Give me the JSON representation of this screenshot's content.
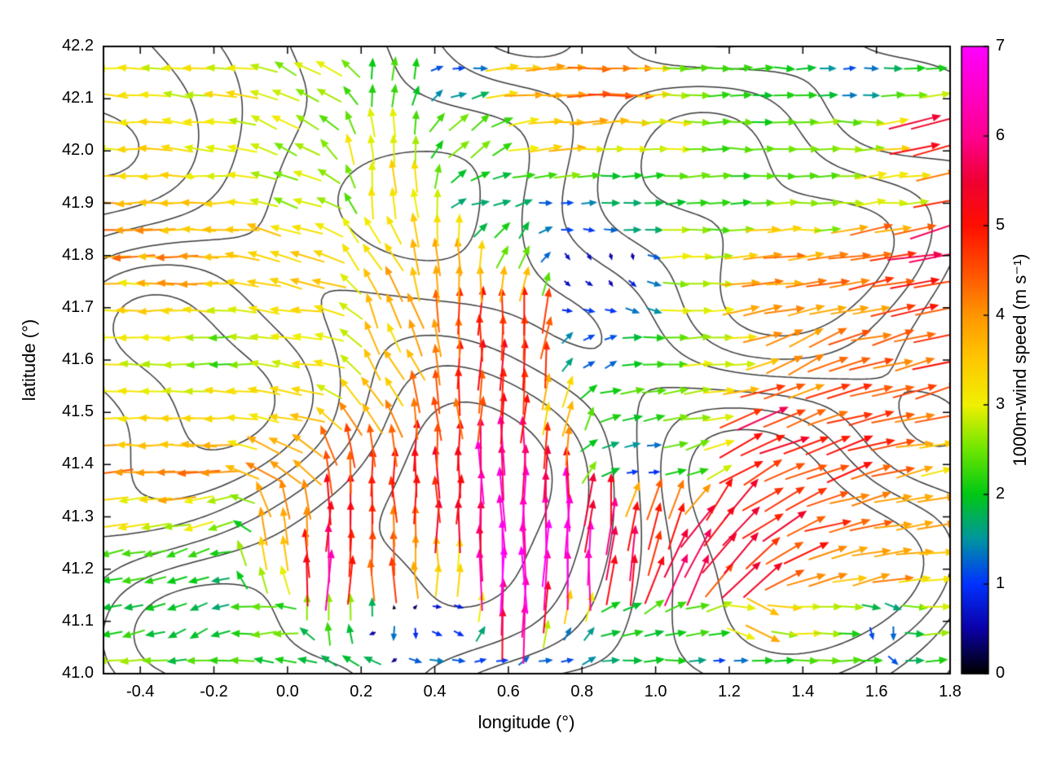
{
  "axes": {
    "xlabel": "longitude (°)",
    "ylabel": "latitude (°)",
    "xticks": [
      -0.4,
      -0.2,
      0,
      0.2,
      0.4,
      0.6,
      0.8,
      1.0,
      1.2,
      1.4,
      1.6,
      1.8
    ],
    "xtick_labels": [
      "-0.4",
      "-0.2",
      "0.0",
      "0.2",
      "0.4",
      "0.6",
      "0.8",
      "1.0",
      "1.2",
      "1.4",
      "1.6",
      "1.8"
    ],
    "yticks": [
      41.0,
      41.1,
      41.2,
      41.3,
      41.4,
      41.5,
      41.6,
      41.7,
      41.8,
      41.9,
      42.0,
      42.1,
      42.2
    ],
    "ytick_labels": [
      "41.0",
      "41.1",
      "41.2",
      "41.3",
      "41.4",
      "41.5",
      "41.6",
      "41.7",
      "41.8",
      "41.9",
      "42.0",
      "42.1",
      "42.2"
    ]
  },
  "colorbar": {
    "label": "1000m-wind speed (m s⁻¹)",
    "min": 0,
    "max": 7,
    "ticks": [
      0,
      1,
      2,
      3,
      4,
      5,
      6,
      7
    ],
    "tick_labels": [
      "0",
      "1",
      "2",
      "3",
      "4",
      "5",
      "6",
      "7"
    ]
  },
  "chart_data": {
    "type": "quiver",
    "title": "",
    "xlabel": "longitude (°)",
    "ylabel": "latitude (°)",
    "xlim": [
      -0.5,
      1.8
    ],
    "ylim": [
      41.0,
      42.2
    ],
    "grid": false,
    "colorbar_label": "1000m-wind speed (m s⁻¹)",
    "speed_range": [
      0,
      7
    ],
    "colormap_stops": [
      [
        0,
        "#000000"
      ],
      [
        0.5,
        "#0b00a8"
      ],
      [
        1,
        "#0032ff"
      ],
      [
        1.5,
        "#0096a0"
      ],
      [
        2,
        "#00c814"
      ],
      [
        2.5,
        "#6ee600"
      ],
      [
        3,
        "#f0f000"
      ],
      [
        3.5,
        "#ffc800"
      ],
      [
        4,
        "#ff9600"
      ],
      [
        4.5,
        "#ff5000"
      ],
      [
        5,
        "#ff0f00"
      ],
      [
        5.5,
        "#ee0033"
      ],
      [
        6,
        "#ff0090"
      ],
      [
        6.5,
        "#ff00c8"
      ],
      [
        7,
        "#ff00ff"
      ]
    ],
    "arrow_grid": {
      "lon_start": -0.478,
      "lon_step": 0.059,
      "lat_start": 41.025,
      "lat_step": 0.0515
    },
    "contour_overlay": {
      "description": "terrain elevation contour lines",
      "color": "#3a3a3a",
      "line_width": 1.5,
      "levels": [
        -2.4,
        -1.4,
        -0.5,
        0.5,
        1.4,
        2.4
      ]
    },
    "control_points_fields": [
      "lon",
      "lat",
      "dir_deg_ccw_from_east",
      "speed_m_s"
    ],
    "control_points": [
      [
        -0.45,
        42.16,
        175,
        3.0
      ],
      [
        -0.15,
        42.15,
        172,
        3.1
      ],
      [
        0.08,
        42.15,
        150,
        2.7
      ],
      [
        0.3,
        42.16,
        80,
        2.2
      ],
      [
        0.47,
        42.17,
        0,
        1.2
      ],
      [
        0.65,
        42.14,
        5,
        3.8
      ],
      [
        0.9,
        42.12,
        2,
        4.4
      ],
      [
        1.12,
        42.15,
        0,
        2.4
      ],
      [
        1.35,
        42.16,
        0,
        2.0
      ],
      [
        1.55,
        42.15,
        0,
        1.2
      ],
      [
        1.73,
        42.14,
        0,
        2.2
      ],
      [
        -0.45,
        42.02,
        178,
        3.2
      ],
      [
        -0.2,
        42.0,
        176,
        3.0
      ],
      [
        0.0,
        42.03,
        150,
        2.8
      ],
      [
        0.25,
        42.0,
        95,
        3.2
      ],
      [
        0.5,
        42.02,
        40,
        2.4
      ],
      [
        0.75,
        42.0,
        5,
        3.6
      ],
      [
        1.0,
        42.03,
        0,
        3.0
      ],
      [
        1.25,
        42.0,
        0,
        2.2
      ],
      [
        1.5,
        42.02,
        0,
        2.6
      ],
      [
        1.78,
        42.05,
        10,
        5.6
      ],
      [
        -0.47,
        41.9,
        182,
        3.8
      ],
      [
        -0.2,
        41.88,
        180,
        3.6
      ],
      [
        0.05,
        41.9,
        160,
        2.8
      ],
      [
        0.3,
        41.92,
        95,
        3.2
      ],
      [
        0.55,
        41.9,
        10,
        1.8
      ],
      [
        0.75,
        41.9,
        0,
        1.2
      ],
      [
        0.95,
        41.9,
        5,
        1.8
      ],
      [
        1.2,
        41.9,
        0,
        2.2
      ],
      [
        1.45,
        41.9,
        0,
        2.4
      ],
      [
        1.68,
        41.9,
        5,
        3.0
      ],
      [
        1.79,
        41.86,
        15,
        5.2
      ],
      [
        -0.48,
        41.8,
        183,
        4.2
      ],
      [
        -0.25,
        41.78,
        181,
        4.0
      ],
      [
        0.0,
        41.8,
        165,
        3.6
      ],
      [
        0.25,
        41.8,
        120,
        3.4
      ],
      [
        0.45,
        41.8,
        95,
        4.0
      ],
      [
        0.62,
        41.8,
        60,
        2.4
      ],
      [
        0.78,
        41.78,
        -60,
        0.7
      ],
      [
        0.92,
        41.77,
        -90,
        0.5
      ],
      [
        1.1,
        41.8,
        0,
        3.0
      ],
      [
        1.35,
        41.8,
        5,
        4.0
      ],
      [
        1.6,
        41.8,
        8,
        4.6
      ],
      [
        1.79,
        41.8,
        12,
        5.8
      ],
      [
        -0.45,
        41.7,
        180,
        3.2
      ],
      [
        -0.2,
        41.7,
        177,
        3.0
      ],
      [
        0.05,
        41.7,
        170,
        3.4
      ],
      [
        0.3,
        41.7,
        110,
        3.8
      ],
      [
        0.5,
        41.68,
        90,
        4.6
      ],
      [
        0.65,
        41.7,
        85,
        5.0
      ],
      [
        0.8,
        41.7,
        -10,
        1.0
      ],
      [
        0.95,
        41.72,
        -20,
        1.4
      ],
      [
        1.1,
        41.7,
        0,
        3.0
      ],
      [
        1.3,
        41.7,
        10,
        4.0
      ],
      [
        1.55,
        41.7,
        10,
        4.2
      ],
      [
        1.78,
        41.7,
        12,
        4.6
      ],
      [
        -0.45,
        41.6,
        180,
        3.0
      ],
      [
        -0.2,
        41.6,
        184,
        2.4
      ],
      [
        0.05,
        41.6,
        174,
        3.0
      ],
      [
        0.28,
        41.6,
        120,
        3.4
      ],
      [
        0.48,
        41.58,
        88,
        5.0
      ],
      [
        0.65,
        41.6,
        85,
        5.2
      ],
      [
        0.82,
        41.6,
        30,
        1.2
      ],
      [
        1.0,
        41.6,
        0,
        2.2
      ],
      [
        1.2,
        41.6,
        5,
        3.0
      ],
      [
        1.42,
        41.6,
        25,
        4.0
      ],
      [
        1.65,
        41.6,
        15,
        4.4
      ],
      [
        1.79,
        41.57,
        15,
        5.2
      ],
      [
        -0.45,
        41.5,
        180,
        3.0
      ],
      [
        -0.2,
        41.5,
        177,
        3.2
      ],
      [
        0.0,
        41.5,
        172,
        3.4
      ],
      [
        0.2,
        41.5,
        130,
        3.8
      ],
      [
        0.42,
        41.5,
        95,
        4.4
      ],
      [
        0.6,
        41.5,
        88,
        5.0
      ],
      [
        0.75,
        41.5,
        80,
        3.4
      ],
      [
        0.9,
        41.52,
        10,
        2.2
      ],
      [
        1.1,
        41.5,
        10,
        2.6
      ],
      [
        1.3,
        41.47,
        20,
        5.2
      ],
      [
        1.52,
        41.5,
        15,
        4.6
      ],
      [
        1.78,
        41.5,
        12,
        4.6
      ],
      [
        -0.49,
        41.4,
        183,
        4.4
      ],
      [
        -0.25,
        41.38,
        180,
        4.2
      ],
      [
        -0.02,
        41.4,
        150,
        4.0
      ],
      [
        0.18,
        41.4,
        92,
        4.8
      ],
      [
        0.38,
        41.4,
        90,
        5.2
      ],
      [
        0.58,
        41.4,
        90,
        6.2
      ],
      [
        0.72,
        41.38,
        88,
        5.8
      ],
      [
        0.88,
        41.42,
        15,
        1.8
      ],
      [
        0.97,
        41.4,
        0,
        1.0
      ],
      [
        1.1,
        41.4,
        15,
        2.4
      ],
      [
        1.28,
        41.4,
        30,
        5.0
      ],
      [
        1.48,
        41.4,
        20,
        5.0
      ],
      [
        1.68,
        41.4,
        12,
        4.2
      ],
      [
        1.79,
        41.4,
        8,
        3.4
      ],
      [
        -0.45,
        41.3,
        185,
        3.0
      ],
      [
        -0.22,
        41.3,
        195,
        2.8
      ],
      [
        0.0,
        41.3,
        95,
        4.2
      ],
      [
        0.14,
        41.28,
        90,
        5.4
      ],
      [
        0.3,
        41.3,
        92,
        4.6
      ],
      [
        0.46,
        41.3,
        90,
        5.6
      ],
      [
        0.6,
        41.3,
        90,
        6.8
      ],
      [
        0.73,
        41.3,
        88,
        6.6
      ],
      [
        0.87,
        41.3,
        85,
        5.6
      ],
      [
        1.02,
        41.3,
        70,
        5.2
      ],
      [
        1.18,
        41.3,
        55,
        5.4
      ],
      [
        1.34,
        41.3,
        35,
        5.2
      ],
      [
        1.52,
        41.3,
        15,
        4.4
      ],
      [
        1.7,
        41.3,
        10,
        4.2
      ],
      [
        -0.46,
        41.2,
        190,
        2.2
      ],
      [
        -0.25,
        41.2,
        200,
        2.0
      ],
      [
        -0.05,
        41.22,
        100,
        3.2
      ],
      [
        0.1,
        41.2,
        90,
        6.0
      ],
      [
        0.28,
        41.2,
        92,
        4.6
      ],
      [
        0.44,
        41.22,
        90,
        3.2
      ],
      [
        0.56,
        41.2,
        90,
        7.0
      ],
      [
        0.68,
        41.2,
        90,
        7.0
      ],
      [
        0.8,
        41.2,
        88,
        6.4
      ],
      [
        0.93,
        41.2,
        80,
        5.6
      ],
      [
        1.08,
        41.2,
        65,
        5.4
      ],
      [
        1.25,
        41.2,
        45,
        5.2
      ],
      [
        1.42,
        41.22,
        20,
        4.6
      ],
      [
        1.6,
        41.2,
        12,
        4.0
      ],
      [
        1.78,
        41.2,
        8,
        3.2
      ],
      [
        -0.46,
        41.1,
        195,
        2.0
      ],
      [
        -0.25,
        41.08,
        210,
        1.8
      ],
      [
        -0.05,
        41.1,
        185,
        2.6
      ],
      [
        0.12,
        41.12,
        85,
        2.6
      ],
      [
        0.3,
        41.08,
        -90,
        1.2
      ],
      [
        0.45,
        41.1,
        -30,
        1.0
      ],
      [
        0.62,
        41.1,
        88,
        6.4
      ],
      [
        0.78,
        41.07,
        60,
        1.4
      ],
      [
        0.92,
        41.1,
        10,
        2.0
      ],
      [
        1.1,
        41.1,
        5,
        2.2
      ],
      [
        1.28,
        41.1,
        -25,
        3.6
      ],
      [
        1.45,
        41.1,
        0,
        3.0
      ],
      [
        1.62,
        41.07,
        -90,
        1.2
      ],
      [
        1.78,
        41.1,
        0,
        2.8
      ],
      [
        -0.45,
        41.02,
        185,
        2.6
      ],
      [
        -0.2,
        41.02,
        180,
        2.4
      ],
      [
        0.0,
        41.03,
        170,
        2.0
      ],
      [
        0.2,
        41.02,
        150,
        1.8
      ],
      [
        0.4,
        41.02,
        -10,
        1.4
      ],
      [
        0.58,
        41.01,
        0,
        1.1
      ],
      [
        0.73,
        41.01,
        0,
        1.2
      ],
      [
        0.9,
        41.02,
        5,
        1.8
      ],
      [
        1.05,
        41.03,
        0,
        2.0
      ],
      [
        1.18,
        41.02,
        0,
        1.1
      ],
      [
        1.35,
        41.02,
        0,
        2.2
      ],
      [
        1.55,
        41.03,
        0,
        2.6
      ],
      [
        1.75,
        41.02,
        0,
        2.0
      ]
    ]
  }
}
